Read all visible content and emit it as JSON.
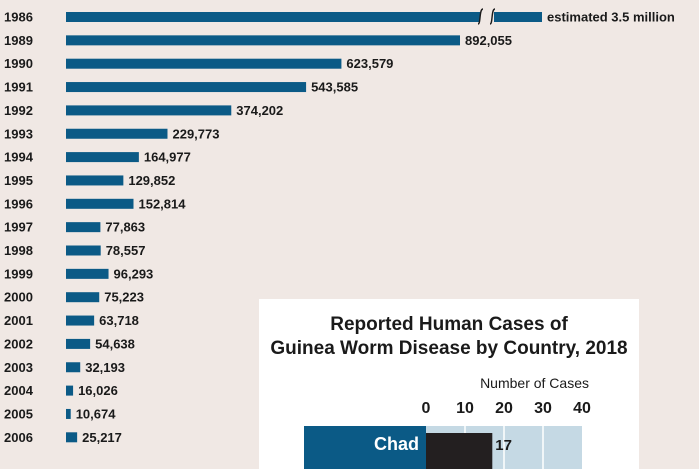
{
  "chart_data": [
    {
      "type": "bar",
      "orientation": "horizontal",
      "categories": [
        "1986",
        "1989",
        "1990",
        "1991",
        "1992",
        "1993",
        "1994",
        "1995",
        "1996",
        "1997",
        "1998",
        "1999",
        "2000",
        "2001",
        "2002",
        "2003",
        "2004",
        "2005",
        "2006"
      ],
      "values": [
        3500000,
        892055,
        623579,
        543585,
        374202,
        229773,
        164977,
        129852,
        152814,
        77863,
        78557,
        96293,
        75223,
        63718,
        54638,
        32193,
        16026,
        10674,
        25217
      ],
      "labels": [
        "estimated 3.5 million",
        "892,055",
        "623,579",
        "543,585",
        "374,202",
        "229,773",
        "164,977",
        "129,852",
        "152,814",
        "77,863",
        "78,557",
        "96,293",
        "75,223",
        "63,718",
        "54,638",
        "32,193",
        "16,026",
        "10,674",
        "25,217"
      ],
      "axis_break_on": "1986",
      "colors": {
        "bar": "#0b5a86"
      }
    },
    {
      "type": "bar",
      "orientation": "horizontal",
      "title_lines": [
        "Reported Human Cases of",
        "Guinea Worm Disease by Country, 2018"
      ],
      "xlabel": "Number of Cases",
      "xticks": [
        0,
        10,
        20,
        30,
        40
      ],
      "xlim": [
        0,
        40
      ],
      "categories": [
        "Chad"
      ],
      "values": [
        17
      ],
      "labels": [
        "17"
      ],
      "colors": {
        "bar": "#231f20",
        "plot_bg": "#c5d9e4",
        "label_bg": "#0b5a86"
      }
    }
  ]
}
